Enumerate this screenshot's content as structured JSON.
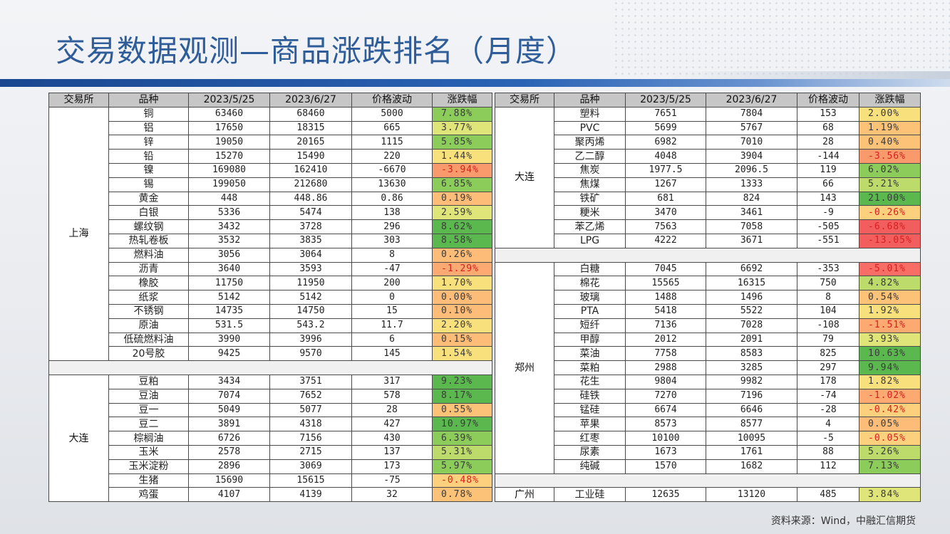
{
  "page_title": "交易数据观测—商品涨跌排名（月度）",
  "source_note": "资料来源：Wind，中融汇信期货",
  "headers": [
    "交易所",
    "品种",
    "2023/5/25",
    "2023/6/27",
    "价格波动",
    "涨跌幅"
  ],
  "colors": {
    "title": "#2e5d9a",
    "band": "#1a4790",
    "header_bg": "#c6c6c6",
    "negative_text": "#d62020"
  },
  "left_sections": [
    {
      "exchange": "上海",
      "rows": [
        [
          "铜",
          "63460",
          "68460",
          "5000",
          "7.88%"
        ],
        [
          "铝",
          "17650",
          "18315",
          "665",
          "3.77%"
        ],
        [
          "锌",
          "19050",
          "20165",
          "1115",
          "5.85%"
        ],
        [
          "铅",
          "15270",
          "15490",
          "220",
          "1.44%"
        ],
        [
          "镍",
          "169080",
          "162410",
          "-6670",
          "-3.94%"
        ],
        [
          "锡",
          "199050",
          "212680",
          "13630",
          "6.85%"
        ],
        [
          "黄金",
          "448",
          "448.86",
          "0.86",
          "0.19%"
        ],
        [
          "白银",
          "5336",
          "5474",
          "138",
          "2.59%"
        ],
        [
          "螺纹钢",
          "3432",
          "3728",
          "296",
          "8.62%"
        ],
        [
          "热轧卷板",
          "3532",
          "3835",
          "303",
          "8.58%"
        ],
        [
          "燃料油",
          "3056",
          "3064",
          "8",
          "0.26%"
        ],
        [
          "沥青",
          "3640",
          "3593",
          "-47",
          "-1.29%"
        ],
        [
          "橡胶",
          "11750",
          "11950",
          "200",
          "1.70%"
        ],
        [
          "纸浆",
          "5142",
          "5142",
          "0",
          "0.00%"
        ],
        [
          "不锈钢",
          "14735",
          "14750",
          "15",
          "0.10%"
        ],
        [
          "原油",
          "531.5",
          "543.2",
          "11.7",
          "2.20%"
        ],
        [
          "低硫燃料油",
          "3990",
          "3996",
          "6",
          "0.15%"
        ],
        [
          "20号胶",
          "9425",
          "9570",
          "145",
          "1.54%"
        ]
      ]
    },
    {
      "exchange": "大连",
      "rows": [
        [
          "豆粕",
          "3434",
          "3751",
          "317",
          "9.23%"
        ],
        [
          "豆油",
          "7074",
          "7652",
          "578",
          "8.17%"
        ],
        [
          "豆一",
          "5049",
          "5077",
          "28",
          "0.55%"
        ],
        [
          "豆二",
          "3891",
          "4318",
          "427",
          "10.97%"
        ],
        [
          "棕榈油",
          "6726",
          "7156",
          "430",
          "6.39%"
        ],
        [
          "玉米",
          "2578",
          "2715",
          "137",
          "5.31%"
        ],
        [
          "玉米淀粉",
          "2896",
          "3069",
          "173",
          "5.97%"
        ],
        [
          "生猪",
          "15690",
          "15615",
          "-75",
          "-0.48%"
        ],
        [
          "鸡蛋",
          "4107",
          "4139",
          "32",
          "0.78%"
        ]
      ]
    }
  ],
  "right_sections": [
    {
      "exchange": "大连",
      "rows": [
        [
          "塑料",
          "7651",
          "7804",
          "153",
          "2.00%"
        ],
        [
          "PVC",
          "5699",
          "5767",
          "68",
          "1.19%"
        ],
        [
          "聚丙烯",
          "6982",
          "7010",
          "28",
          "0.40%"
        ],
        [
          "乙二醇",
          "4048",
          "3904",
          "-144",
          "-3.56%"
        ],
        [
          "焦炭",
          "1977.5",
          "2096.5",
          "119",
          "6.02%"
        ],
        [
          "焦煤",
          "1267",
          "1333",
          "66",
          "5.21%"
        ],
        [
          "铁矿",
          "681",
          "824",
          "143",
          "21.00%"
        ],
        [
          "粳米",
          "3470",
          "3461",
          "-9",
          "-0.26%"
        ],
        [
          "苯乙烯",
          "7563",
          "7058",
          "-505",
          "-6.68%"
        ],
        [
          "LPG",
          "4222",
          "3671",
          "-551",
          "-13.05%"
        ]
      ]
    },
    {
      "exchange": "郑州",
      "rows": [
        [
          "白糖",
          "7045",
          "6692",
          "-353",
          "-5.01%"
        ],
        [
          "棉花",
          "15565",
          "16315",
          "750",
          "4.82%"
        ],
        [
          "玻璃",
          "1488",
          "1496",
          "8",
          "0.54%"
        ],
        [
          "PTA",
          "5418",
          "5522",
          "104",
          "1.92%"
        ],
        [
          "短纤",
          "7136",
          "7028",
          "-108",
          "-1.51%"
        ],
        [
          "甲醇",
          "2012",
          "2091",
          "79",
          "3.93%"
        ],
        [
          "菜油",
          "7758",
          "8583",
          "825",
          "10.63%"
        ],
        [
          "菜粕",
          "2988",
          "3285",
          "297",
          "9.94%"
        ],
        [
          "花生",
          "9804",
          "9982",
          "178",
          "1.82%"
        ],
        [
          "硅铁",
          "7270",
          "7196",
          "-74",
          "-1.02%"
        ],
        [
          "锰硅",
          "6674",
          "6646",
          "-28",
          "-0.42%"
        ],
        [
          "苹果",
          "8573",
          "8577",
          "4",
          "0.05%"
        ],
        [
          "红枣",
          "10100",
          "10095",
          "-5",
          "-0.05%"
        ],
        [
          "尿素",
          "1673",
          "1761",
          "88",
          "5.26%"
        ],
        [
          "纯碱",
          "1570",
          "1682",
          "112",
          "7.13%"
        ]
      ]
    },
    {
      "exchange": "广州",
      "rows": [
        [
          "工业硅",
          "12635",
          "13120",
          "485",
          "3.84%"
        ]
      ]
    }
  ]
}
